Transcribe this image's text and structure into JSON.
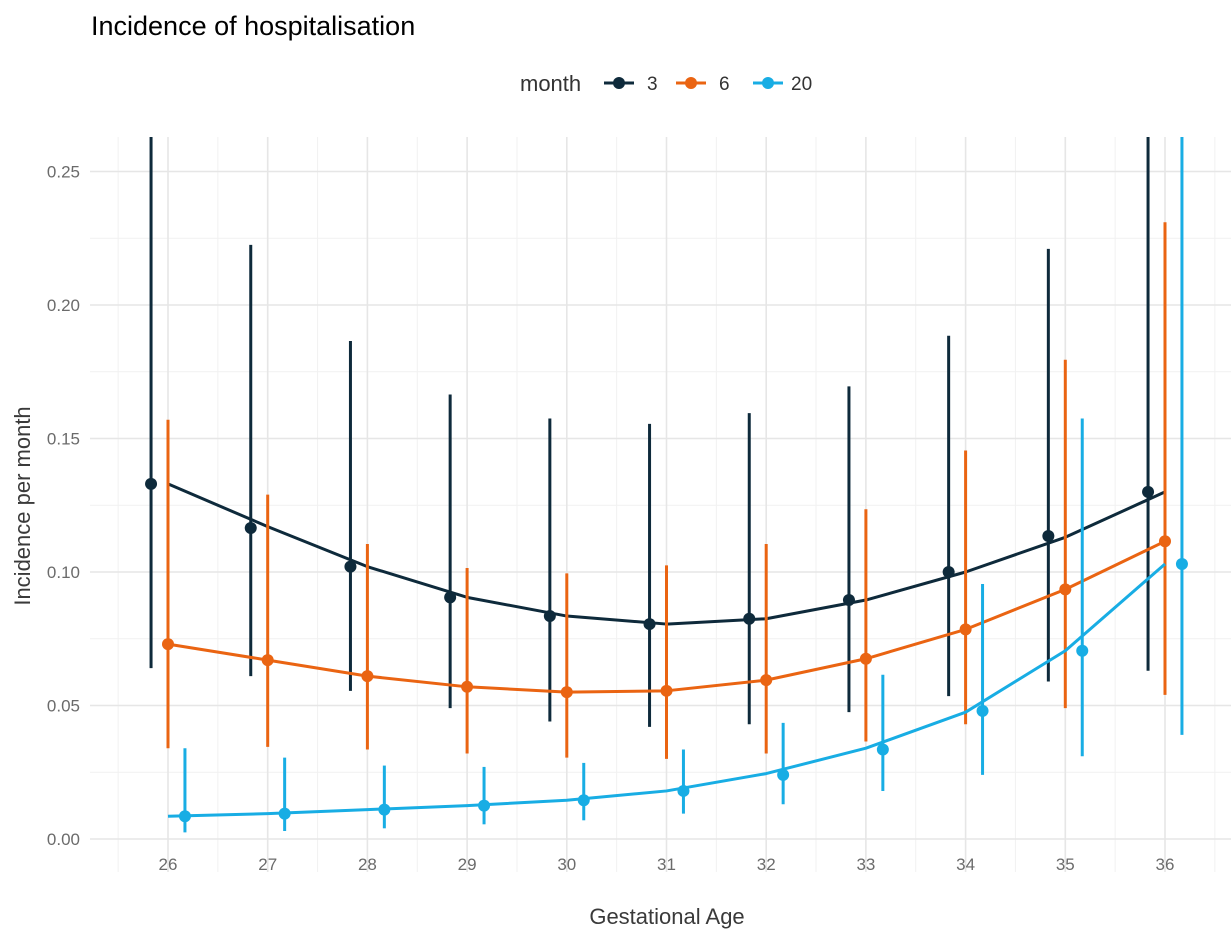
{
  "chart_data": {
    "type": "line",
    "title": "Incidence of hospitalisation",
    "xlabel": "Gestational Age",
    "ylabel": "Incidence per month",
    "xlim": [
      25.5,
      36.6
    ],
    "ylim": [
      -0.01,
      0.262
    ],
    "x_ticks": [
      "26",
      "27",
      "28",
      "29",
      "30",
      "31",
      "32",
      "33",
      "34",
      "35",
      "36"
    ],
    "y_ticks": [
      "0.00",
      "0.05",
      "0.10",
      "0.15",
      "0.20",
      "0.25"
    ],
    "grid": true,
    "legend": {
      "title": "month",
      "position": "top"
    },
    "series": [
      {
        "name": "3",
        "color": "#0e2a3b",
        "dodge": -0.17,
        "x": [
          26,
          27,
          28,
          29,
          30,
          31,
          32,
          33,
          34,
          35,
          36
        ],
        "fit": [
          0.133,
          0.117,
          0.102,
          0.0905,
          0.0835,
          0.0805,
          0.0825,
          0.0895,
          0.1,
          0.113,
          0.13
        ],
        "point": [
          0.133,
          0.1165,
          0.102,
          0.0905,
          0.0835,
          0.0805,
          0.0825,
          0.0895,
          0.1,
          0.1135,
          0.13
        ],
        "lower": [
          0.064,
          0.061,
          0.0555,
          0.049,
          0.044,
          0.042,
          0.043,
          0.0475,
          0.0535,
          0.059,
          0.063
        ],
        "upper": [
          0.265,
          0.2225,
          0.1865,
          0.1665,
          0.1575,
          0.1555,
          0.1595,
          0.1695,
          0.1885,
          0.221,
          0.265
        ]
      },
      {
        "name": "6",
        "color": "#ea6412",
        "dodge": 0,
        "x": [
          26,
          27,
          28,
          29,
          30,
          31,
          32,
          33,
          34,
          35,
          36
        ],
        "fit": [
          0.073,
          0.067,
          0.061,
          0.057,
          0.055,
          0.0555,
          0.0595,
          0.0675,
          0.0785,
          0.0935,
          0.1115
        ],
        "point": [
          0.073,
          0.067,
          0.061,
          0.057,
          0.055,
          0.0555,
          0.0595,
          0.0675,
          0.0785,
          0.0935,
          0.1115
        ],
        "lower": [
          0.034,
          0.0345,
          0.0335,
          0.032,
          0.0305,
          0.03,
          0.032,
          0.0365,
          0.043,
          0.049,
          0.054
        ],
        "upper": [
          0.157,
          0.129,
          0.1105,
          0.1015,
          0.0995,
          0.1025,
          0.1105,
          0.1235,
          0.1455,
          0.1795,
          0.231
        ]
      },
      {
        "name": "20",
        "color": "#18ade4",
        "dodge": 0.17,
        "x": [
          26,
          27,
          28,
          29,
          30,
          31,
          32,
          33,
          34,
          35,
          36
        ],
        "fit": [
          0.0085,
          0.0095,
          0.011,
          0.0125,
          0.0145,
          0.018,
          0.0245,
          0.034,
          0.0475,
          0.0705,
          0.103
        ],
        "point": [
          0.0085,
          0.0095,
          0.011,
          0.0125,
          0.0145,
          0.018,
          0.024,
          0.0335,
          0.048,
          0.0705,
          0.103
        ],
        "lower": [
          0.0025,
          0.003,
          0.004,
          0.0055,
          0.007,
          0.0095,
          0.013,
          0.018,
          0.024,
          0.031,
          0.039
        ],
        "upper": [
          0.034,
          0.0305,
          0.0275,
          0.027,
          0.0285,
          0.0335,
          0.0435,
          0.0615,
          0.0955,
          0.1575,
          0.265
        ]
      }
    ]
  }
}
